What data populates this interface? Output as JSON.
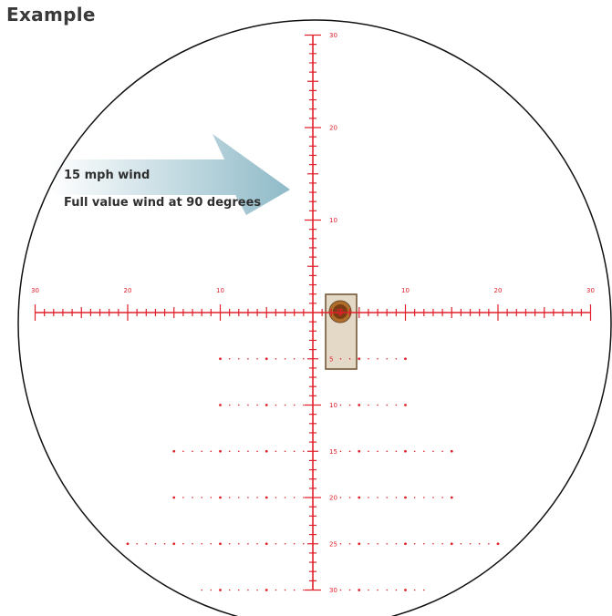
{
  "title": "Example",
  "wind": {
    "speed_label": "15 mph wind",
    "value_label": "Full value wind at 90 degrees"
  },
  "reticle": {
    "color": "#e0202a",
    "horizontal_labels": [
      "30",
      "20",
      "10",
      "10",
      "20",
      "30"
    ],
    "vertical_labels": [
      "30",
      "20",
      "10"
    ],
    "holdover_labels": [
      "5",
      "10",
      "15",
      "20",
      "25",
      "30"
    ]
  },
  "colors": {
    "ring": "#111111",
    "arrow_start": "#ffffff",
    "arrow_end": "#8fbac8",
    "target_panel": "#e4d9c7",
    "target_border": "#6b4e2e",
    "target_outer": "#b06d2a",
    "target_inner": "#7a3d14"
  }
}
